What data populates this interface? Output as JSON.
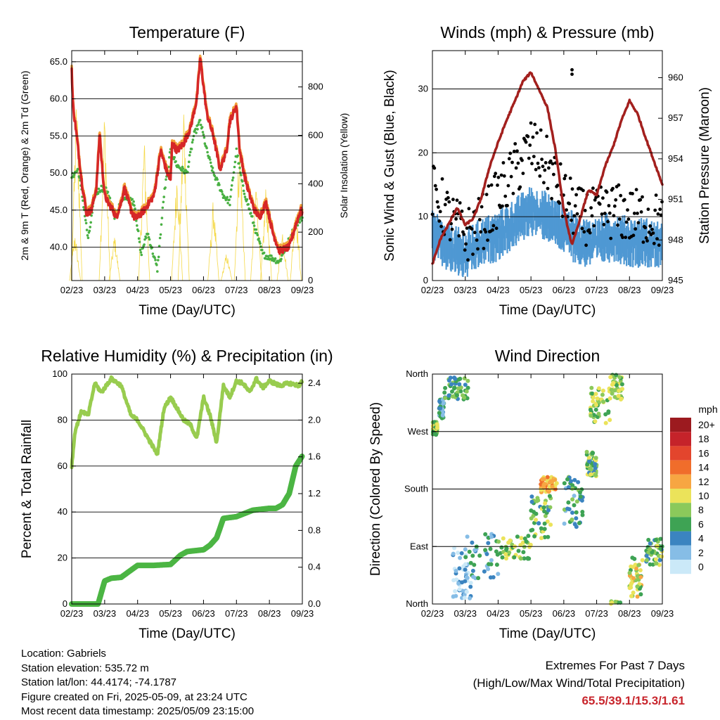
{
  "x_ticks": [
    "02/23",
    "03/23",
    "04/23",
    "05/23",
    "06/23",
    "07/23",
    "08/23",
    "09/23"
  ],
  "info": {
    "location": "Location: Gabriels",
    "elevation": "Station elevation: 535.72 m",
    "latlon": "Station lat/lon: 44.4174; -74.1787",
    "created": "Figure created on Fri, 2025-05-09, at 23:24 UTC",
    "recent": "Most recent data timestamp: 2025/05/09 23:15:00"
  },
  "extremes": {
    "line1": "Extremes For Past 7 Days",
    "line2": "(High/Low/Max Wind/Total Precipitation)",
    "values": "65.5/39.1/15.3/1.61"
  },
  "colors": {
    "temp9m": "#d62728",
    "temp2m": "#f2a23a",
    "dew": "#49b043",
    "solar": "#f5d94a",
    "wind": "#4f98d3",
    "gust": "#000000",
    "pressure": "#a3201e",
    "rh": "#98cc4f",
    "precip": "#4bb543"
  },
  "chart_data": [
    {
      "type": "line",
      "title": "Temperature (F)",
      "xlabel": "Time (Day/UTC)",
      "ylabel": "2m & 9m T (Red, Orange) & 2m Td (Green)",
      "y2label": "Solar Insolation (Yellow)",
      "ylim": [
        35.5,
        66.5
      ],
      "y2lim": [
        0,
        950
      ],
      "yticks": [
        40.0,
        45.0,
        50.0,
        55.0,
        60.0,
        65.0
      ],
      "yticklabels": [
        "40.0",
        "45.0",
        "50.0",
        "55.0",
        "60.0",
        "65.0"
      ],
      "y2ticks": [
        0,
        200,
        400,
        600,
        800
      ],
      "grid": true,
      "series": [
        {
          "key": "temp",
          "t": [
            0,
            0.03,
            0.06,
            0.1,
            0.15,
            0.2,
            0.3,
            0.45,
            0.6,
            0.75,
            0.85,
            0.9,
            1.0,
            1.1,
            1.25,
            1.35,
            1.5,
            1.6,
            1.8,
            1.9,
            2.0,
            2.2,
            2.5,
            2.7,
            2.9,
            3.0,
            3.05,
            3.2,
            3.4,
            3.6,
            3.8,
            3.9,
            4.1,
            4.3,
            4.5,
            4.7,
            4.8,
            5.0,
            5.1,
            5.25,
            5.4,
            5.55,
            5.7,
            5.9,
            6.1,
            6.3,
            6.6,
            6.8,
            6.95,
            7.0
          ],
          "values": [
            64,
            60,
            58,
            57,
            55,
            53,
            49,
            44.5,
            45,
            48,
            55.5,
            52,
            47,
            46,
            45,
            44,
            46,
            48,
            45,
            44,
            44,
            45,
            47,
            53,
            50,
            49,
            54,
            53,
            54,
            56,
            60,
            65.5,
            58,
            55,
            50.5,
            53,
            57,
            59,
            53,
            49.5,
            47,
            45,
            44,
            46,
            42,
            39.5,
            40,
            43,
            45,
            44.5
          ]
        },
        {
          "key": "dew",
          "t": [
            0,
            0.2,
            0.35,
            0.5,
            0.7,
            0.9,
            1.1,
            1.3,
            1.6,
            1.9,
            2.1,
            2.3,
            2.6,
            2.8,
            3.0,
            3.2,
            3.5,
            3.7,
            3.9,
            4.1,
            4.3,
            4.6,
            4.8,
            5.0,
            5.2,
            5.4,
            5.6,
            5.8,
            6.1,
            6.3,
            6.5,
            6.8,
            7.0
          ],
          "values": [
            49.5,
            50.5,
            46,
            41,
            47,
            48,
            47.5,
            44,
            47,
            46,
            39,
            42,
            37,
            47,
            53,
            51,
            50,
            55,
            57,
            53,
            50,
            47,
            46,
            53,
            48,
            45,
            42,
            39,
            38.5,
            38,
            40,
            43,
            44
          ]
        },
        {
          "key": "solar",
          "peak_days": [
            0.1,
            0.15,
            1.0,
            1.3,
            2.2,
            3.2,
            3.4,
            4.3,
            4.7,
            5.1,
            5.6,
            5.9,
            6.4,
            6.8
          ],
          "peak_values": [
            210,
            820,
            750,
            200,
            620,
            500,
            780,
            350,
            120,
            650,
            450,
            420,
            220,
            350
          ]
        }
      ]
    },
    {
      "type": "line",
      "title": "Winds (mph) & Pressure (mb)",
      "xlabel": "Time (Day/UTC)",
      "ylabel": "Sonic Wind & Gust (Blue, Black)",
      "y2label": "Station Pressure (Maroon)",
      "ylim": [
        0,
        36
      ],
      "y2lim": [
        945,
        962
      ],
      "yticks": [
        0,
        10,
        20,
        30
      ],
      "y2ticks": [
        945,
        948,
        951,
        954,
        957,
        960
      ],
      "grid": true,
      "series": [
        {
          "key": "pressure",
          "t": [
            0,
            0.25,
            0.5,
            0.75,
            1.0,
            1.25,
            1.5,
            1.75,
            2.0,
            2.25,
            2.5,
            2.75,
            3.0,
            3.25,
            3.5,
            3.75,
            4.0,
            4.25,
            4.5,
            4.75,
            5.0,
            5.25,
            5.5,
            5.75,
            6.0,
            6.25,
            6.5,
            6.75,
            7.0
          ],
          "values": [
            946.2,
            948.1,
            949.2,
            950.4,
            949.1,
            949.6,
            951.2,
            953.5,
            955.2,
            956.8,
            958.2,
            959.7,
            960.4,
            959.1,
            957.8,
            954.6,
            950.2,
            947.6,
            949.6,
            951.7,
            951.3,
            953.4,
            954.9,
            956.8,
            958.3,
            957.3,
            955.5,
            953.8,
            952.1
          ]
        },
        {
          "key": "wind_mean",
          "t": [
            0,
            0.5,
            1.0,
            1.5,
            2.0,
            2.5,
            3.0,
            3.5,
            4.0,
            4.5,
            5.0,
            5.5,
            6.0,
            6.5,
            7.0
          ],
          "values": [
            7,
            5,
            4,
            6,
            7,
            9,
            11,
            10,
            8,
            6,
            6,
            7,
            6,
            6,
            5
          ]
        },
        {
          "key": "gust_mean",
          "t": [
            0,
            0.5,
            1.0,
            1.5,
            2.0,
            2.5,
            3.0,
            3.5,
            4.0,
            4.5,
            5.0,
            5.5,
            6.0,
            6.5,
            7.0
          ],
          "values": [
            14,
            10,
            7,
            9,
            13,
            17,
            21,
            18,
            13,
            10,
            10,
            11,
            10,
            10,
            9
          ]
        },
        {
          "key": "gust_max",
          "t": [
            4.25,
            4.25
          ],
          "values": [
            33,
            32.3
          ]
        }
      ]
    },
    {
      "type": "line",
      "title": "Relative Humidity (%) & Precipitation (in)",
      "xlabel": "Time (Day/UTC)",
      "ylabel": "Percent & Total Rainfall",
      "ylim": [
        0,
        100
      ],
      "y2lim": [
        0,
        2.5
      ],
      "yticks": [
        0,
        20,
        40,
        60,
        80,
        100
      ],
      "y2ticks": [
        0.0,
        0.4,
        0.8,
        1.2,
        1.6,
        2.0,
        2.4
      ],
      "y2ticklabels": [
        "0.0",
        "0.4",
        "0.8",
        "1.2",
        "1.6",
        "2.0",
        "2.4"
      ],
      "grid": true,
      "series": [
        {
          "key": "rh",
          "t": [
            0,
            0.1,
            0.3,
            0.5,
            0.7,
            0.9,
            1.2,
            1.5,
            1.8,
            2.0,
            2.2,
            2.4,
            2.6,
            2.8,
            3.0,
            3.2,
            3.4,
            3.6,
            3.8,
            4.0,
            4.2,
            4.4,
            4.6,
            4.8,
            5.0,
            5.2,
            5.4,
            5.6,
            5.8,
            6.0,
            6.3,
            6.6,
            6.9,
            7.0
          ],
          "values": [
            60,
            75,
            84,
            82,
            96,
            92,
            98,
            95,
            82,
            80,
            75,
            70,
            65,
            85,
            90,
            85,
            80,
            78,
            72,
            90,
            82,
            70,
            95,
            90,
            97,
            96,
            92,
            98,
            94,
            97,
            95,
            96,
            95,
            97
          ]
        },
        {
          "key": "precip",
          "t": [
            0,
            0.5,
            0.8,
            1.0,
            1.2,
            1.5,
            2.0,
            2.5,
            3.0,
            3.3,
            3.5,
            4.0,
            4.2,
            4.4,
            4.6,
            5.0,
            5.5,
            6.0,
            6.2,
            6.4,
            6.6,
            6.8,
            7.0
          ],
          "values": [
            0,
            0,
            0.0,
            0.25,
            0.28,
            0.29,
            0.42,
            0.42,
            0.43,
            0.53,
            0.57,
            0.59,
            0.64,
            0.72,
            0.93,
            0.95,
            1.02,
            1.04,
            1.04,
            1.08,
            1.2,
            1.5,
            1.61
          ]
        }
      ]
    },
    {
      "type": "scatter",
      "title": "Wind Direction",
      "xlabel": "Time (Day/UTC)",
      "ylabel": "Direction (Colored By Speed)",
      "yticks": [
        0,
        90,
        180,
        270,
        360
      ],
      "yticklabels": [
        "North",
        "East",
        "South",
        "West",
        "North"
      ],
      "grid": true,
      "legend": {
        "title": "mph",
        "placement": "right",
        "labels": [
          "20+",
          "18",
          "16",
          "14",
          "12",
          "10",
          "8",
          "6",
          "4",
          "2",
          "0"
        ],
        "colors": [
          "#9c1a1f",
          "#c5232a",
          "#e3452d",
          "#f06d2b",
          "#f7a642",
          "#ebe35a",
          "#8bc95b",
          "#3ea354",
          "#3b84c0",
          "#86bde6",
          "#cbe9f8"
        ]
      },
      "clusters": [
        {
          "t": [
            0,
            0.15
          ],
          "dir": [
            265,
            285
          ],
          "speed": 8
        },
        {
          "t": [
            0.2,
            0.35
          ],
          "dir": [
            290,
            320
          ],
          "speed": 4
        },
        {
          "t": [
            0.35,
            1.1
          ],
          "dir": [
            320,
            355
          ],
          "speed": 6
        },
        {
          "t": [
            0.6,
            1.2
          ],
          "dir": [
            0,
            90
          ],
          "speed": 2
        },
        {
          "t": [
            1.0,
            2.0
          ],
          "dir": [
            40,
            110
          ],
          "speed": 4
        },
        {
          "t": [
            2.0,
            3.0
          ],
          "dir": [
            70,
            110
          ],
          "speed": 8
        },
        {
          "t": [
            3.0,
            3.6
          ],
          "dir": [
            100,
            170
          ],
          "speed": 7
        },
        {
          "t": [
            3.3,
            3.8
          ],
          "dir": [
            175,
            200
          ],
          "speed": 12
        },
        {
          "t": [
            4.0,
            4.6
          ],
          "dir": [
            120,
            200
          ],
          "speed": 5
        },
        {
          "t": [
            4.7,
            5.0
          ],
          "dir": [
            200,
            240
          ],
          "speed": 7
        },
        {
          "t": [
            4.8,
            5.4
          ],
          "dir": [
            280,
            340
          ],
          "speed": 8
        },
        {
          "t": [
            5.4,
            5.8
          ],
          "dir": [
            320,
            365
          ],
          "speed": 8
        },
        {
          "t": [
            6.0,
            6.4
          ],
          "dir": [
            10,
            75
          ],
          "speed": 9
        },
        {
          "t": [
            6.5,
            7.0
          ],
          "dir": [
            60,
            105
          ],
          "speed": 7
        }
      ]
    }
  ]
}
